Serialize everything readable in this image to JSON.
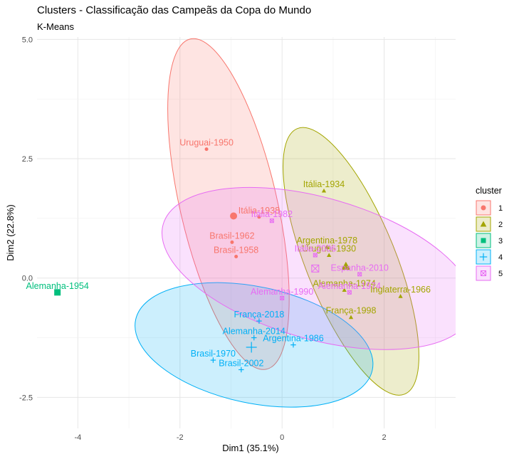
{
  "chart_data": {
    "type": "scatter",
    "title": "Clusters - Classificação das Campeãs da Copa do Mundo",
    "subtitle": "K-Means",
    "xlabel": "Dim1 (35.1%)",
    "ylabel": "Dim2 (22.8%)",
    "xlim": [
      -4.8,
      3.4
    ],
    "ylim": [
      -3.15,
      5.05
    ],
    "x_ticks": [
      -4,
      -2,
      0,
      2
    ],
    "y_ticks": [
      -2.5,
      0.0,
      2.5,
      5.0
    ],
    "y_tick_labels": [
      "-2.5",
      "0.0",
      "2.5",
      "5.0"
    ],
    "grid": true,
    "legend": {
      "title": "cluster",
      "position": "right",
      "labels": [
        "1",
        "2",
        "3",
        "4",
        "5"
      ]
    },
    "clusters": [
      {
        "id": "1",
        "color": "#F8766D",
        "marker": "circle",
        "points": [
          {
            "label": "Uruguai-1950",
            "x": -1.48,
            "y": 2.7
          },
          {
            "label": "Itália-1938",
            "x": -0.45,
            "y": 1.28
          },
          {
            "label": "Brasil-1962",
            "x": -0.98,
            "y": 0.75
          },
          {
            "label": "Brasil-1958",
            "x": -0.9,
            "y": 0.45
          }
        ],
        "centroid": {
          "x": -0.95,
          "y": 1.3
        }
      },
      {
        "id": "2",
        "color": "#A3A500",
        "marker": "triangle",
        "points": [
          {
            "label": "Itália-1934",
            "x": 0.82,
            "y": 1.83
          },
          {
            "label": "Argentina-1978",
            "x": 0.88,
            "y": 0.65
          },
          {
            "label": "Uruguai-1930",
            "x": 0.92,
            "y": 0.48
          },
          {
            "label": "Alemanha-1974",
            "x": 1.22,
            "y": -0.25
          },
          {
            "label": "Inglaterra-1966",
            "x": 2.32,
            "y": -0.38
          },
          {
            "label": "França-1998",
            "x": 1.35,
            "y": -0.82
          }
        ],
        "centroid": {
          "x": 1.25,
          "y": 0.25
        }
      },
      {
        "id": "3",
        "color": "#00BF7D",
        "marker": "square",
        "points": [
          {
            "label": "Alemanha-1954",
            "x": -4.4,
            "y": -0.3
          }
        ],
        "centroid": {
          "x": -4.4,
          "y": -0.3
        }
      },
      {
        "id": "4",
        "color": "#00B0F6",
        "marker": "plus",
        "points": [
          {
            "label": "França-2018",
            "x": -0.45,
            "y": -0.9
          },
          {
            "label": "Alemanha-2014",
            "x": -0.55,
            "y": -1.25
          },
          {
            "label": "Argentina-1986",
            "x": 0.22,
            "y": -1.4
          },
          {
            "label": "Brasil-1970",
            "x": -1.35,
            "y": -1.72
          },
          {
            "label": "Brasil-2002",
            "x": -0.8,
            "y": -1.92
          }
        ],
        "centroid": {
          "x": -0.6,
          "y": -1.45
        }
      },
      {
        "id": "5",
        "color": "#E76BF3",
        "marker": "boxtimes",
        "points": [
          {
            "label": "Itália-1982",
            "x": -0.2,
            "y": 1.2
          },
          {
            "label": "Itália-2006",
            "x": 0.65,
            "y": 0.48
          },
          {
            "label": "Espanha-2010",
            "x": 1.52,
            "y": 0.08
          },
          {
            "label": "Alemanha-1990",
            "x": 0.0,
            "y": -0.42
          },
          {
            "label": "Alemanha-1974",
            "x": 1.32,
            "y": -0.3
          }
        ],
        "centroid": {
          "x": 0.65,
          "y": 0.2
        }
      }
    ],
    "ellipses": [
      {
        "cluster": "1",
        "center": [
          -1.05,
          1.55
        ],
        "semi_axes": [
          0.95,
          3.55
        ],
        "rotation_deg": -13
      },
      {
        "cluster": "2",
        "center": [
          1.35,
          0.35
        ],
        "semi_axes": [
          0.88,
          3.0
        ],
        "rotation_deg": -22
      },
      {
        "cluster": "4",
        "center": [
          -0.55,
          -1.4
        ],
        "semi_axes": [
          2.37,
          1.22
        ],
        "rotation_deg": 12
      },
      {
        "cluster": "5",
        "center": [
          0.7,
          0.2
        ],
        "semi_axes": [
          3.15,
          1.48
        ],
        "rotation_deg": 16
      }
    ]
  }
}
